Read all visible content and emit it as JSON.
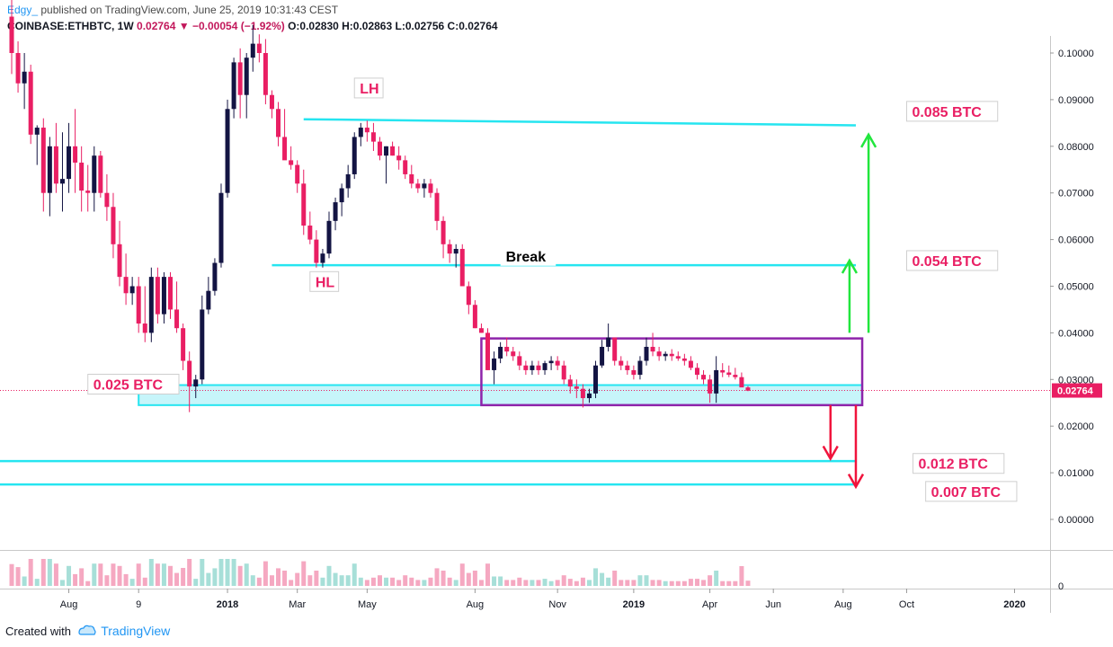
{
  "header": {
    "author": "Edgy_",
    "published": "published on TradingView.com, June 25, 2019 10:31:43 CEST",
    "symbol": "COINBASE:ETHBTC, 1W",
    "last": "0.02764",
    "change": "−0.00054 (−1.92%)",
    "ohlc": "O:0.02830 H:0.02863 L:0.02756 C:0.02764"
  },
  "footer": {
    "created_with": "Created with",
    "brand": "TradingView"
  },
  "colors": {
    "up": "#131443",
    "down": "#e91e63",
    "level": "#26e5f0",
    "range_box": "#8e24aa",
    "green_arrow": "#21e63d",
    "red_arrow": "#f0143c",
    "label_text": "#e91e63"
  },
  "chart_data": {
    "type": "candlestick",
    "y_axis": {
      "ticks": [
        "0.10000",
        "0.09000",
        "0.08000",
        "0.07000",
        "0.06000",
        "0.05000",
        "0.04000",
        "0.03000",
        "0.02000",
        "0.01000",
        "0.00000"
      ],
      "tick_values": [
        0.1,
        0.09,
        0.08,
        0.07,
        0.06,
        0.05,
        0.04,
        0.03,
        0.02,
        0.01,
        0.0
      ],
      "range": [
        -0.005,
        0.104
      ],
      "price_label": "0.02764",
      "price_value": 0.02764,
      "volume_tick": "0"
    },
    "x_axis": {
      "labels": [
        "Aug",
        "9",
        "2018",
        "Mar",
        "May",
        "Aug",
        "Nov",
        "2019",
        "Apr",
        "Jun",
        "Aug",
        "Oct",
        "2020"
      ],
      "label_weeks": [
        9,
        20,
        34,
        45,
        56,
        73,
        86,
        98,
        110,
        120,
        131,
        141,
        158
      ]
    },
    "candles": [
      [
        0.1078,
        0.1135,
        0.0955,
        0.1
      ],
      [
        0.1,
        0.1025,
        0.0915,
        0.0935
      ],
      [
        0.0935,
        0.1,
        0.088,
        0.096
      ],
      [
        0.096,
        0.0975,
        0.0805,
        0.0825
      ],
      [
        0.0825,
        0.0845,
        0.076,
        0.084
      ],
      [
        0.084,
        0.086,
        0.066,
        0.07
      ],
      [
        0.07,
        0.082,
        0.065,
        0.08
      ],
      [
        0.08,
        0.085,
        0.07,
        0.072
      ],
      [
        0.072,
        0.083,
        0.066,
        0.073
      ],
      [
        0.073,
        0.085,
        0.07,
        0.08
      ],
      [
        0.08,
        0.088,
        0.07,
        0.0765
      ],
      [
        0.0765,
        0.08,
        0.066,
        0.0705
      ],
      [
        0.0705,
        0.076,
        0.066,
        0.07
      ],
      [
        0.07,
        0.08,
        0.066,
        0.078
      ],
      [
        0.078,
        0.079,
        0.069,
        0.07
      ],
      [
        0.07,
        0.074,
        0.064,
        0.067
      ],
      [
        0.067,
        0.07,
        0.056,
        0.059
      ],
      [
        0.059,
        0.064,
        0.05,
        0.052
      ],
      [
        0.052,
        0.057,
        0.046,
        0.0485
      ],
      [
        0.0485,
        0.052,
        0.046,
        0.05
      ],
      [
        0.05,
        0.052,
        0.04,
        0.042
      ],
      [
        0.042,
        0.05,
        0.038,
        0.04
      ],
      [
        0.04,
        0.054,
        0.038,
        0.052
      ],
      [
        0.052,
        0.054,
        0.042,
        0.044
      ],
      [
        0.044,
        0.053,
        0.042,
        0.052
      ],
      [
        0.052,
        0.053,
        0.043,
        0.045
      ],
      [
        0.045,
        0.051,
        0.04,
        0.041
      ],
      [
        0.041,
        0.042,
        0.032,
        0.034
      ],
      [
        0.034,
        0.036,
        0.023,
        0.0285
      ],
      [
        0.0285,
        0.031,
        0.026,
        0.03
      ],
      [
        0.03,
        0.048,
        0.029,
        0.045
      ],
      [
        0.045,
        0.052,
        0.044,
        0.049
      ],
      [
        0.049,
        0.056,
        0.048,
        0.055
      ],
      [
        0.055,
        0.072,
        0.054,
        0.07
      ],
      [
        0.07,
        0.09,
        0.069,
        0.088
      ],
      [
        0.088,
        0.099,
        0.086,
        0.098
      ],
      [
        0.098,
        0.101,
        0.086,
        0.091
      ],
      [
        0.091,
        0.1,
        0.086,
        0.099
      ],
      [
        0.099,
        0.106,
        0.096,
        0.102
      ],
      [
        0.102,
        0.104,
        0.098,
        0.1
      ],
      [
        0.1,
        0.103,
        0.089,
        0.091
      ],
      [
        0.091,
        0.092,
        0.086,
        0.088
      ],
      [
        0.088,
        0.0895,
        0.08,
        0.082
      ],
      [
        0.082,
        0.088,
        0.078,
        0.077
      ],
      [
        0.077,
        0.08,
        0.075,
        0.076
      ],
      [
        0.076,
        0.077,
        0.07,
        0.072
      ],
      [
        0.072,
        0.075,
        0.061,
        0.063
      ],
      [
        0.063,
        0.066,
        0.059,
        0.06
      ],
      [
        0.06,
        0.062,
        0.054,
        0.055
      ],
      [
        0.055,
        0.058,
        0.054,
        0.057
      ],
      [
        0.057,
        0.066,
        0.056,
        0.064
      ],
      [
        0.064,
        0.069,
        0.062,
        0.068
      ],
      [
        0.068,
        0.072,
        0.065,
        0.071
      ],
      [
        0.071,
        0.076,
        0.069,
        0.074
      ],
      [
        0.074,
        0.083,
        0.073,
        0.082
      ],
      [
        0.082,
        0.085,
        0.08,
        0.084
      ],
      [
        0.084,
        0.0855,
        0.081,
        0.083
      ],
      [
        0.083,
        0.085,
        0.079,
        0.081
      ],
      [
        0.081,
        0.082,
        0.077,
        0.078
      ],
      [
        0.078,
        0.08,
        0.072,
        0.08
      ],
      [
        0.08,
        0.081,
        0.078,
        0.078
      ],
      [
        0.078,
        0.08,
        0.075,
        0.077
      ],
      [
        0.077,
        0.078,
        0.073,
        0.074
      ],
      [
        0.074,
        0.076,
        0.071,
        0.072
      ],
      [
        0.072,
        0.073,
        0.07,
        0.071
      ],
      [
        0.071,
        0.073,
        0.069,
        0.072
      ],
      [
        0.072,
        0.073,
        0.069,
        0.07
      ],
      [
        0.07,
        0.071,
        0.062,
        0.064
      ],
      [
        0.064,
        0.065,
        0.056,
        0.059
      ],
      [
        0.059,
        0.06,
        0.055,
        0.057
      ],
      [
        0.057,
        0.059,
        0.054,
        0.058
      ],
      [
        0.058,
        0.059,
        0.05,
        0.05
      ],
      [
        0.05,
        0.051,
        0.044,
        0.046
      ],
      [
        0.046,
        0.047,
        0.041,
        0.041
      ],
      [
        0.041,
        0.042,
        0.04,
        0.04
      ],
      [
        0.04,
        0.041,
        0.032,
        0.032
      ],
      [
        0.032,
        0.036,
        0.029,
        0.0345
      ],
      [
        0.0345,
        0.038,
        0.0335,
        0.037
      ],
      [
        0.037,
        0.039,
        0.035,
        0.036
      ],
      [
        0.036,
        0.037,
        0.034,
        0.035
      ],
      [
        0.035,
        0.036,
        0.032,
        0.033
      ],
      [
        0.033,
        0.034,
        0.031,
        0.032
      ],
      [
        0.032,
        0.034,
        0.031,
        0.033
      ],
      [
        0.033,
        0.034,
        0.031,
        0.032
      ],
      [
        0.032,
        0.034,
        0.031,
        0.0335
      ],
      [
        0.0335,
        0.035,
        0.032,
        0.034
      ],
      [
        0.034,
        0.035,
        0.032,
        0.033
      ],
      [
        0.033,
        0.034,
        0.029,
        0.03
      ],
      [
        0.03,
        0.031,
        0.027,
        0.0285
      ],
      [
        0.0285,
        0.03,
        0.026,
        0.028
      ],
      [
        0.028,
        0.029,
        0.024,
        0.026
      ],
      [
        0.026,
        0.028,
        0.025,
        0.027
      ],
      [
        0.027,
        0.034,
        0.026,
        0.033
      ],
      [
        0.033,
        0.0385,
        0.0325,
        0.037
      ],
      [
        0.037,
        0.042,
        0.036,
        0.039
      ],
      [
        0.039,
        0.039,
        0.033,
        0.034
      ],
      [
        0.034,
        0.035,
        0.032,
        0.033
      ],
      [
        0.033,
        0.034,
        0.031,
        0.032
      ],
      [
        0.032,
        0.033,
        0.03,
        0.031
      ],
      [
        0.031,
        0.035,
        0.03,
        0.034
      ],
      [
        0.034,
        0.039,
        0.033,
        0.037
      ],
      [
        0.037,
        0.04,
        0.035,
        0.036
      ],
      [
        0.036,
        0.037,
        0.034,
        0.035
      ],
      [
        0.035,
        0.036,
        0.034,
        0.0355
      ],
      [
        0.0355,
        0.0365,
        0.034,
        0.035
      ],
      [
        0.035,
        0.036,
        0.034,
        0.0345
      ],
      [
        0.0345,
        0.0355,
        0.033,
        0.034
      ],
      [
        0.034,
        0.035,
        0.032,
        0.0325
      ],
      [
        0.0325,
        0.0335,
        0.03,
        0.031
      ],
      [
        0.031,
        0.032,
        0.029,
        0.03
      ],
      [
        0.03,
        0.031,
        0.025,
        0.027
      ],
      [
        0.027,
        0.035,
        0.025,
        0.032
      ],
      [
        0.032,
        0.0335,
        0.0305,
        0.0315
      ],
      [
        0.0315,
        0.033,
        0.0305,
        0.031
      ],
      [
        0.031,
        0.0325,
        0.03,
        0.0305
      ],
      [
        0.0305,
        0.0315,
        0.029,
        0.0283
      ],
      [
        0.0283,
        0.0286,
        0.0275,
        0.0276
      ]
    ],
    "volume_visible": true,
    "levels": [
      {
        "from_week": 46,
        "to_week": 133,
        "value_start": 0.0858,
        "value_end": 0.0845
      },
      {
        "from_week": 41,
        "to_week": 133,
        "value": 0.0545
      },
      {
        "from_week": -5,
        "to_week": 133,
        "value": 0.0125
      },
      {
        "from_week": -5,
        "to_week": 133,
        "value": 0.0075
      }
    ],
    "support_zone": {
      "from_week": 20,
      "to_week": 134,
      "low": 0.0245,
      "high": 0.0288
    },
    "range_box": {
      "from_week": 74,
      "to_week": 134,
      "low": 0.0245,
      "high": 0.0388
    },
    "green_arrows": [
      {
        "week": 132,
        "from": 0.04,
        "to": 0.0555
      },
      {
        "week": 135,
        "from": 0.04,
        "to": 0.0825
      }
    ],
    "red_arrows": [
      {
        "week": 129,
        "from": 0.0245,
        "to": 0.013
      },
      {
        "week": 133,
        "from": 0.0245,
        "to": 0.007
      }
    ],
    "annotations": [
      {
        "text": "LH",
        "week": 54,
        "value": 0.0925,
        "style": "outlined"
      },
      {
        "text": "HL",
        "week": 47,
        "value": 0.051,
        "style": "outlined"
      },
      {
        "text": "Break",
        "week": 77,
        "value": 0.0565,
        "style": "black"
      },
      {
        "text": "0.085 BTC",
        "week": 141,
        "value": 0.0875,
        "style": "outlined"
      },
      {
        "text": "0.054 BTC",
        "week": 141,
        "value": 0.0555,
        "style": "outlined"
      },
      {
        "text": "0.025 BTC",
        "week": 12,
        "value": 0.029,
        "style": "outlined"
      },
      {
        "text": "0.012 BTC",
        "week": 142,
        "value": 0.012,
        "style": "outlined"
      },
      {
        "text": "0.007 BTC",
        "week": 144,
        "value": 0.006,
        "style": "outlined"
      }
    ],
    "grid": false
  }
}
